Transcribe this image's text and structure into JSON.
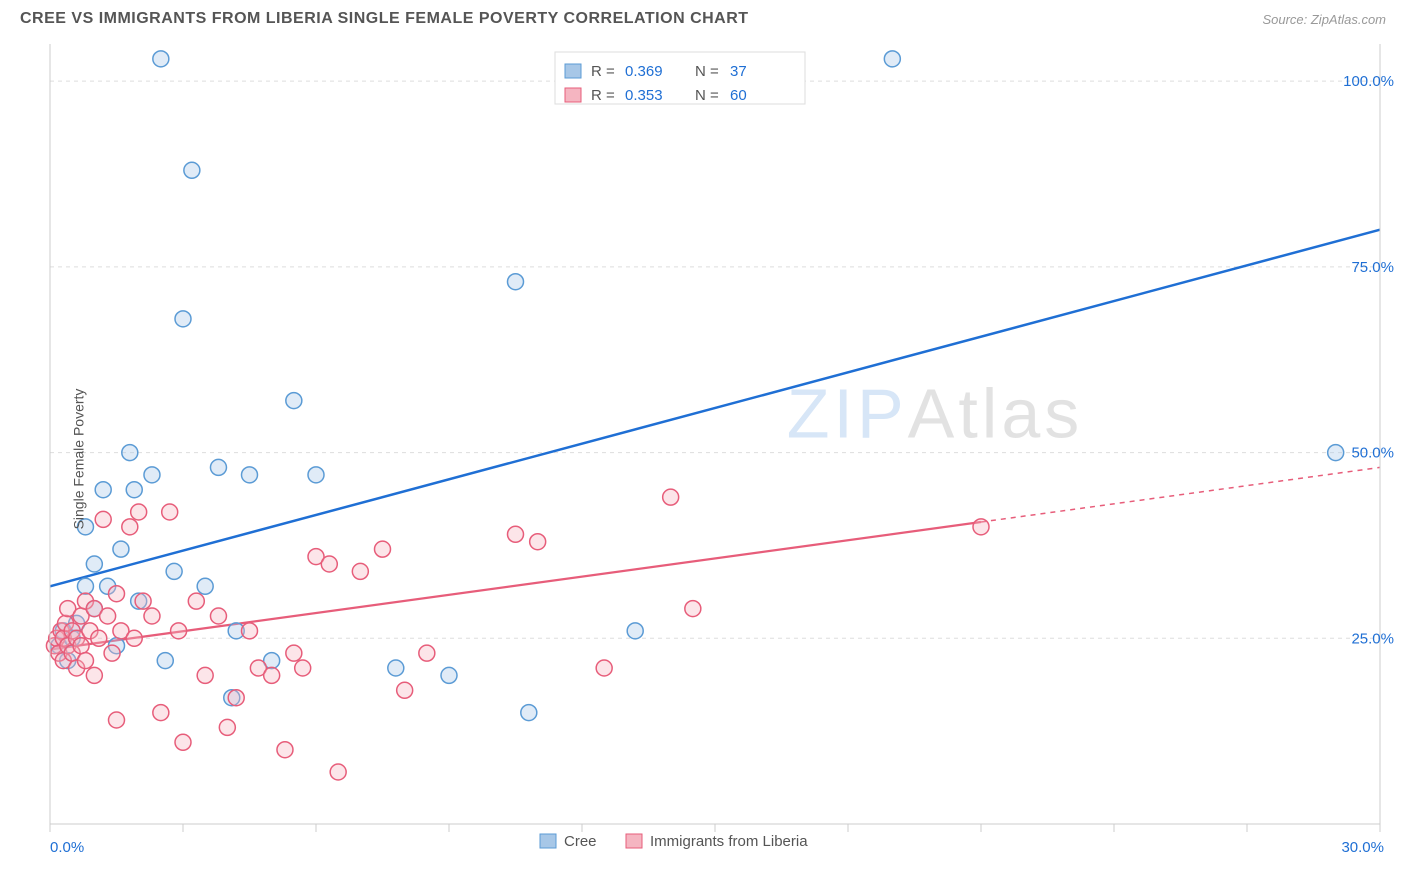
{
  "title": "CREE VS IMMIGRANTS FROM LIBERIA SINGLE FEMALE POVERTY CORRELATION CHART",
  "source": "Source: ZipAtlas.com",
  "ylabel": "Single Female Poverty",
  "chart": {
    "type": "scatter",
    "xlim": [
      0,
      30
    ],
    "ylim": [
      0,
      105
    ],
    "x_ticks": [
      0,
      3,
      6,
      9,
      12,
      15,
      18,
      21,
      24,
      27,
      30
    ],
    "x_tick_labels": {
      "0": "0.0%",
      "30": "30.0%"
    },
    "y_ticks": [
      25,
      50,
      75,
      100
    ],
    "y_tick_labels": {
      "25": "25.0%",
      "50": "50.0%",
      "75": "75.0%",
      "100": "100.0%"
    },
    "background_color": "#ffffff",
    "grid_color": "#dddddd",
    "axis_color": "#cccccc",
    "marker_radius": 8,
    "series": [
      {
        "name": "Cree",
        "color_fill": "#a7c7e7",
        "color_stroke": "#5b9bd5",
        "line_color": "#1f6fd4",
        "R": "0.369",
        "N": "37",
        "trend": {
          "x1": 0,
          "y1": 32,
          "x2": 30,
          "y2": 80,
          "dash_from_x": null
        },
        "points": [
          [
            0.2,
            24
          ],
          [
            0.3,
            26
          ],
          [
            0.4,
            22
          ],
          [
            0.5,
            25
          ],
          [
            0.6,
            27
          ],
          [
            0.8,
            40
          ],
          [
            0.8,
            32
          ],
          [
            1.0,
            35
          ],
          [
            1.0,
            29
          ],
          [
            1.2,
            45
          ],
          [
            1.3,
            32
          ],
          [
            1.5,
            24
          ],
          [
            1.6,
            37
          ],
          [
            1.8,
            50
          ],
          [
            1.9,
            45
          ],
          [
            2.0,
            30
          ],
          [
            2.3,
            47
          ],
          [
            2.5,
            103
          ],
          [
            2.6,
            22
          ],
          [
            2.8,
            34
          ],
          [
            3.0,
            68
          ],
          [
            3.2,
            88
          ],
          [
            3.5,
            32
          ],
          [
            3.8,
            48
          ],
          [
            4.1,
            17
          ],
          [
            4.2,
            26
          ],
          [
            4.5,
            47
          ],
          [
            5.0,
            22
          ],
          [
            5.5,
            57
          ],
          [
            6.0,
            47
          ],
          [
            7.8,
            21
          ],
          [
            9.0,
            20
          ],
          [
            10.5,
            73
          ],
          [
            10.8,
            15
          ],
          [
            13.2,
            26
          ],
          [
            19.0,
            103
          ],
          [
            29.0,
            50
          ]
        ]
      },
      {
        "name": "Immigrants from Liberia",
        "color_fill": "#f5b5c1",
        "color_stroke": "#e75d7a",
        "line_color": "#e75d7a",
        "R": "0.353",
        "N": "60",
        "trend": {
          "x1": 0,
          "y1": 23.5,
          "x2": 30,
          "y2": 48,
          "dash_from_x": 21
        },
        "points": [
          [
            0.1,
            24
          ],
          [
            0.15,
            25
          ],
          [
            0.2,
            23
          ],
          [
            0.25,
            26
          ],
          [
            0.3,
            22
          ],
          [
            0.3,
            25
          ],
          [
            0.35,
            27
          ],
          [
            0.4,
            24
          ],
          [
            0.4,
            29
          ],
          [
            0.5,
            23
          ],
          [
            0.5,
            26
          ],
          [
            0.6,
            21
          ],
          [
            0.6,
            25
          ],
          [
            0.7,
            28
          ],
          [
            0.7,
            24
          ],
          [
            0.8,
            30
          ],
          [
            0.8,
            22
          ],
          [
            0.9,
            26
          ],
          [
            1.0,
            20
          ],
          [
            1.0,
            29
          ],
          [
            1.1,
            25
          ],
          [
            1.2,
            41
          ],
          [
            1.3,
            28
          ],
          [
            1.4,
            23
          ],
          [
            1.5,
            14
          ],
          [
            1.5,
            31
          ],
          [
            1.6,
            26
          ],
          [
            1.8,
            40
          ],
          [
            1.9,
            25
          ],
          [
            2.0,
            42
          ],
          [
            2.1,
            30
          ],
          [
            2.3,
            28
          ],
          [
            2.5,
            15
          ],
          [
            2.7,
            42
          ],
          [
            2.9,
            26
          ],
          [
            3.0,
            11
          ],
          [
            3.3,
            30
          ],
          [
            3.5,
            20
          ],
          [
            3.8,
            28
          ],
          [
            4.0,
            13
          ],
          [
            4.2,
            17
          ],
          [
            4.5,
            26
          ],
          [
            4.7,
            21
          ],
          [
            5.0,
            20
          ],
          [
            5.3,
            10
          ],
          [
            5.5,
            23
          ],
          [
            5.7,
            21
          ],
          [
            6.0,
            36
          ],
          [
            6.3,
            35
          ],
          [
            6.5,
            7
          ],
          [
            7.0,
            34
          ],
          [
            7.5,
            37
          ],
          [
            8.0,
            18
          ],
          [
            8.5,
            23
          ],
          [
            10.5,
            39
          ],
          [
            11.0,
            38
          ],
          [
            12.5,
            21
          ],
          [
            14.0,
            44
          ],
          [
            14.5,
            29
          ],
          [
            21.0,
            40
          ]
        ]
      }
    ]
  },
  "legend_top": {
    "R_label": "R =",
    "N_label": "N ="
  },
  "legend_bottom": [
    "Cree",
    "Immigrants from Liberia"
  ],
  "watermark": {
    "zip": "ZIP",
    "atlas": "Atlas"
  }
}
